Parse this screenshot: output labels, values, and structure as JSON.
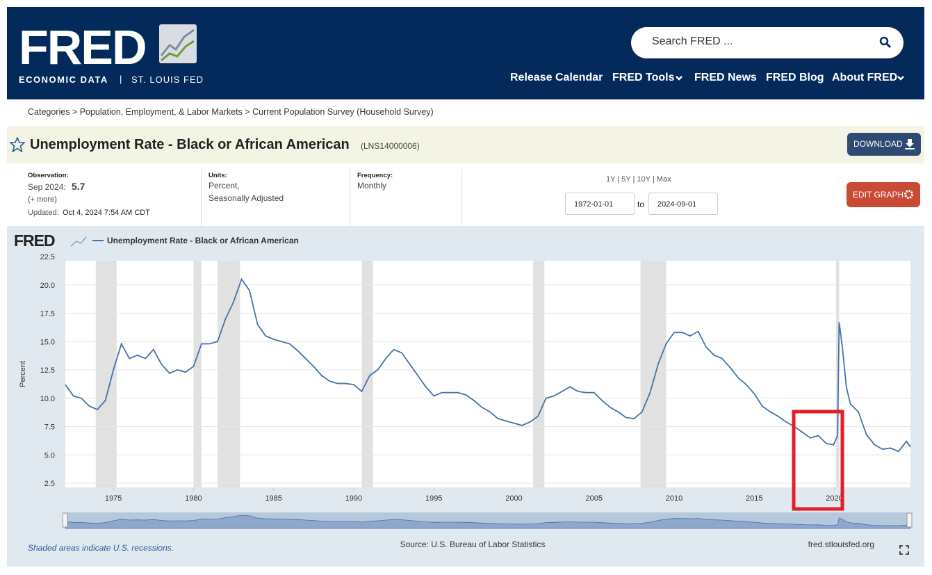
{
  "header": {
    "logo": "FRED",
    "tagline_left": "ECONOMIC DATA",
    "tagline_sep": "|",
    "tagline_right": "ST. LOUIS FED",
    "search": "Search FRED ...",
    "nav": [
      "Release Calendar",
      "FRED Tools",
      "FRED News",
      "FRED Blog",
      "About FRED"
    ]
  },
  "breadcrumb": "Categories > Population, Employment, & Labor Markets > Current Population Survey (Household Survey)",
  "series_title": "Unemployment Rate - Black or African American",
  "series_id": "(LNS14000006)",
  "download": "DOWNLOAD",
  "info": {
    "obs_label": "Observation:",
    "obs_date": "Sep 2024:",
    "obs_value": "5.7",
    "more": "(+ more)",
    "updated_label": "Updated:",
    "updated": "Oct 4, 2024 7:54 AM CDT",
    "units_label": "Units:",
    "units_1": "Percent,",
    "units_2": "Seasonally Adjusted",
    "freq_label": "Frequency:",
    "freq": "Monthly",
    "ranges": "1Y | 5Y | 10Y | Max",
    "start": "1972-01-01",
    "to": "to",
    "end": "2024-09-01",
    "edit": "EDIT GRAPH"
  },
  "chart_data": {
    "type": "line",
    "logo": "FRED",
    "ylabel": "Percent",
    "grid": true,
    "x": [
      1972.0,
      1972.5,
      1973.0,
      1973.5,
      1974.0,
      1974.5,
      1975.0,
      1975.5,
      1976.0,
      1976.5,
      1977.0,
      1977.5,
      1978.0,
      1978.5,
      1979.0,
      1979.5,
      1980.0,
      1980.5,
      1981.0,
      1981.5,
      1982.0,
      1982.5,
      1983.0,
      1983.5,
      1984.0,
      1984.5,
      1985.0,
      1985.5,
      1986.0,
      1986.5,
      1987.0,
      1987.5,
      1988.0,
      1988.5,
      1989.0,
      1989.5,
      1990.0,
      1990.5,
      1991.0,
      1991.5,
      1992.0,
      1992.5,
      1993.0,
      1993.5,
      1994.0,
      1994.5,
      1995.0,
      1995.5,
      1996.0,
      1996.5,
      1997.0,
      1997.5,
      1998.0,
      1998.5,
      1999.0,
      1999.5,
      2000.0,
      2000.5,
      2001.0,
      2001.5,
      2002.0,
      2002.5,
      2003.0,
      2003.5,
      2004.0,
      2004.5,
      2005.0,
      2005.5,
      2006.0,
      2006.5,
      2007.0,
      2007.5,
      2008.0,
      2008.5,
      2009.0,
      2009.5,
      2010.0,
      2010.5,
      2011.0,
      2011.5,
      2012.0,
      2012.5,
      2013.0,
      2013.5,
      2014.0,
      2014.5,
      2015.0,
      2015.5,
      2016.0,
      2016.5,
      2017.0,
      2017.5,
      2018.0,
      2018.5,
      2019.0,
      2019.5,
      2019.95,
      2020.2,
      2020.3,
      2020.5,
      2020.75,
      2021.0,
      2021.5,
      2022.0,
      2022.5,
      2023.0,
      2023.5,
      2024.0,
      2024.5,
      2024.75
    ],
    "series": [
      {
        "name": "Unemployment Rate - Black or African American",
        "color": "#4572a7",
        "values": [
          11.2,
          10.2,
          10.0,
          9.3,
          9.0,
          9.8,
          12.5,
          14.8,
          13.5,
          13.8,
          13.5,
          14.3,
          13.0,
          12.2,
          12.5,
          12.3,
          12.8,
          14.8,
          14.8,
          15.0,
          17.0,
          18.5,
          20.5,
          19.5,
          16.5,
          15.5,
          15.2,
          15.0,
          14.8,
          14.2,
          13.5,
          12.8,
          12.0,
          11.5,
          11.3,
          11.3,
          11.2,
          10.6,
          12.0,
          12.5,
          13.5,
          14.3,
          14.0,
          13.0,
          12.0,
          11.0,
          10.2,
          10.5,
          10.5,
          10.5,
          10.3,
          9.8,
          9.2,
          8.8,
          8.2,
          8.0,
          7.8,
          7.6,
          7.9,
          8.4,
          10.0,
          10.2,
          10.6,
          11.0,
          10.6,
          10.5,
          10.5,
          9.8,
          9.2,
          8.8,
          8.3,
          8.2,
          8.8,
          10.5,
          13.0,
          14.8,
          15.8,
          15.8,
          15.5,
          15.9,
          14.5,
          13.8,
          13.5,
          12.7,
          11.8,
          11.2,
          10.4,
          9.3,
          8.8,
          8.4,
          7.9,
          7.5,
          7.0,
          6.5,
          6.7,
          6.0,
          5.9,
          6.7,
          16.7,
          14.5,
          11.0,
          9.5,
          8.8,
          6.8,
          5.9,
          5.5,
          5.6,
          5.3,
          6.2,
          5.7
        ]
      }
    ],
    "xlim": [
      1972,
      2024.75
    ],
    "xticks": [
      1975,
      1980,
      1985,
      1990,
      1995,
      2000,
      2005,
      2010,
      2015,
      2020
    ],
    "ylim": [
      2.5,
      22.5
    ],
    "yticks": [
      2.5,
      {
        "value": 5,
        "label": "5.0"
      },
      7.5,
      {
        "value": 10,
        "label": "10.0"
      },
      12.5,
      {
        "value": 15,
        "label": "15.0"
      },
      17.5,
      {
        "value": 20,
        "label": "20.0"
      },
      22.5
    ],
    "recessions": [
      [
        1973.9,
        1975.2
      ],
      [
        1980.0,
        1980.5
      ],
      [
        1981.5,
        1982.9
      ],
      [
        1990.5,
        1991.2
      ],
      [
        2001.2,
        2001.9
      ],
      [
        2007.9,
        2009.5
      ],
      [
        2020.1,
        2020.3
      ]
    ],
    "recession_note": "Shaded areas indicate U.S. recessions.",
    "source": "Source: U.S. Bureau of Labor Statistics",
    "site": "fred.stlouisfed.org"
  }
}
